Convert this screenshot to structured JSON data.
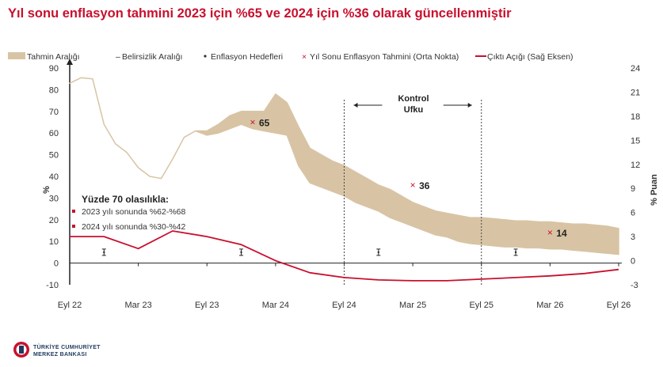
{
  "title": "Yıl sonu enflasyon tahmini 2023 için %65 ve 2024 için %36 olarak güncellenmiştir",
  "colors": {
    "title": "#c8102e",
    "band": "#d8c4a4",
    "output_gap": "#c8102e",
    "marker": "#c8102e",
    "text": "#333333"
  },
  "logo": {
    "line1": "TÜRKİYE CUMHURİYET",
    "line2": "MERKEZ BANKASI"
  },
  "chart_data": {
    "type": "area",
    "x_ticks": [
      "Eyl 22",
      "Mar 23",
      "Eyl 23",
      "Mar 24",
      "Eyl 24",
      "Mar 25",
      "Eyl 25",
      "Mar 26",
      "Eyl 26"
    ],
    "y_left": {
      "label": "%",
      "ticks": [
        -10,
        0,
        10,
        20,
        30,
        40,
        50,
        60,
        70,
        80,
        90
      ],
      "range": [
        -10,
        90
      ]
    },
    "y_right": {
      "label": "% Puan",
      "ticks": [
        -3,
        0,
        3,
        6,
        9,
        12,
        15,
        18,
        21,
        24
      ],
      "range": [
        -3,
        24
      ]
    },
    "legend": [
      {
        "key": "band",
        "label": "Tahmin Aralığı"
      },
      {
        "key": "uncertainty",
        "label": "Belirsizlik Aralığı"
      },
      {
        "key": "target",
        "label": "Enflasyon Hedefleri"
      },
      {
        "key": "forecast",
        "label": "Yıl Sonu Enflasyon Tahmini (Orta Nokta)"
      },
      {
        "key": "gap",
        "label": "Çıktı Açığı (Sağ Eksen)"
      }
    ],
    "series": [
      {
        "name": "Tahmin Aralığı",
        "x_month": [
          0,
          1,
          2,
          3,
          4,
          5,
          6,
          7,
          8,
          9,
          10,
          11,
          12,
          13,
          14,
          15,
          16,
          17,
          18,
          19,
          20,
          21,
          22,
          23,
          24,
          25,
          26,
          27,
          28,
          29,
          30,
          31,
          32,
          33,
          34,
          35,
          36,
          37,
          38,
          39,
          40,
          41,
          42,
          43,
          44,
          45,
          46,
          47,
          48
        ],
        "upper": [
          83,
          85.5,
          85,
          64,
          55,
          51,
          44,
          40,
          39,
          48,
          58,
          61,
          61,
          64,
          68,
          70,
          70,
          70,
          78,
          74,
          63,
          53,
          50,
          47,
          45,
          42,
          39,
          36,
          34,
          31,
          28,
          26,
          24,
          23,
          22,
          21,
          21,
          20.5,
          20,
          19.5,
          19.5,
          19,
          19,
          18.5,
          18,
          18,
          17.5,
          17,
          16
        ],
        "lower": [
          83,
          85.5,
          85,
          64,
          55,
          51,
          44,
          40,
          39,
          48,
          58,
          61,
          59,
          60,
          62,
          64,
          62,
          61,
          60,
          59,
          45,
          37,
          35,
          33,
          31,
          28,
          26,
          24,
          21,
          19,
          17,
          15,
          13,
          12,
          10,
          9,
          8.5,
          8,
          7.5,
          7.5,
          7,
          7,
          6.5,
          6.5,
          6,
          5.5,
          5,
          4.5,
          4
        ]
      },
      {
        "name": "Çıktı Açığı (Sağ Eksen)",
        "x_month": [
          0,
          3,
          6,
          9,
          12,
          15,
          18,
          21,
          24,
          27,
          30,
          33,
          36,
          39,
          42,
          45,
          48
        ],
        "values": [
          3,
          3,
          1.5,
          3.7,
          3,
          2,
          0,
          -1.5,
          -2.1,
          -2.4,
          -2.5,
          -2.5,
          -2.3,
          -2.1,
          -1.9,
          -1.6,
          -1.1
        ]
      }
    ],
    "forecast_points": [
      {
        "x_month": 16,
        "value": 65,
        "label": "65"
      },
      {
        "x_month": 30,
        "value": 36,
        "label": "36"
      },
      {
        "x_month": 42,
        "value": 14,
        "label": "14"
      }
    ],
    "uncertainty_markers": [
      {
        "x_month": 3,
        "value": 5
      },
      {
        "x_month": 15,
        "value": 5
      },
      {
        "x_month": 27,
        "value": 5
      },
      {
        "x_month": 39,
        "value": 5
      }
    ],
    "control_horizon": {
      "x_start_month": 24,
      "x_end_month": 36,
      "label_line1": "Kontrol",
      "label_line2": "Ufku"
    },
    "annotation": {
      "heading": "Yüzde 70 olasılıkla:",
      "items": [
        "2023 yılı sonunda %62-%68",
        "2024 yılı sonunda %30-%42"
      ]
    }
  }
}
